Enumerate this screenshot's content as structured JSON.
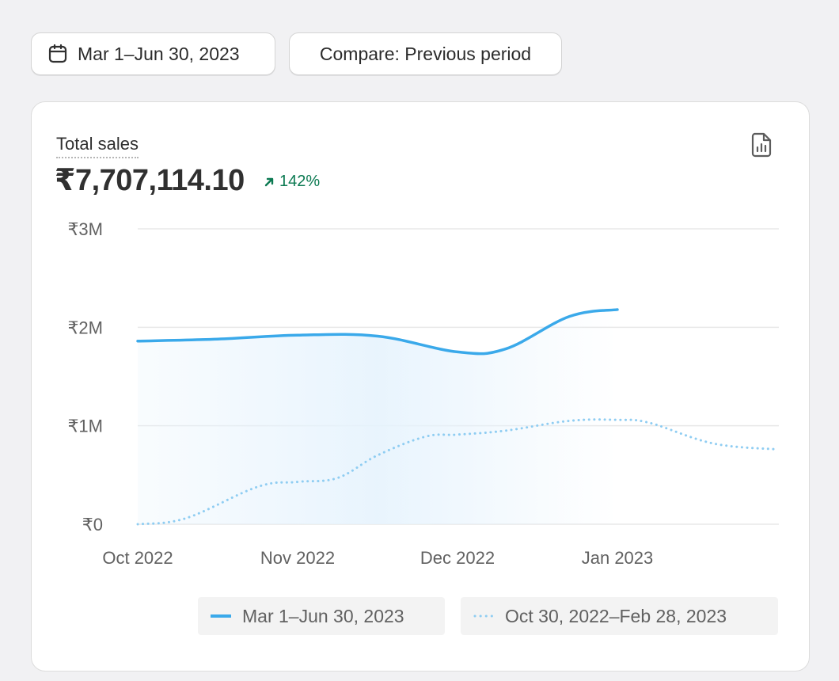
{
  "toolbar": {
    "date_range_label": "Mar 1–Jun 30, 2023",
    "compare_label": "Compare: Previous period",
    "date_icon": "calendar-icon"
  },
  "metric": {
    "label": "Total sales",
    "value": "₹7,707,114.10",
    "change": "142%",
    "change_direction": "up",
    "change_color": "#0c7a52",
    "export_icon": "report-file-icon"
  },
  "chart_data": {
    "type": "line",
    "title": "",
    "xlabel": "",
    "ylabel": "",
    "x_ticks": [
      "Oct 2022",
      "Nov 2022",
      "Dec 2022",
      "Jan 2023"
    ],
    "y_ticks": [
      "₹3M",
      "₹2M",
      "₹1M",
      "₹0"
    ],
    "y_tick_values": [
      3000000,
      2000000,
      1000000,
      0
    ],
    "ylim": [
      0,
      3000000
    ],
    "grid": true,
    "legend_position": "bottom",
    "series": [
      {
        "name": "Mar 1–Jun 30, 2023",
        "style": "solid",
        "color": "#3aa9ea",
        "area_fill": true,
        "x_index": [
          0,
          0.5,
          1,
          1.5,
          2,
          2.3,
          2.7,
          3
        ],
        "values": [
          1860000,
          1880000,
          1920000,
          1910000,
          1750000,
          1780000,
          2110000,
          2180000
        ]
      },
      {
        "name": "Oct 30, 2022–Feb 28, 2023",
        "style": "dotted",
        "color": "#8fcdf2",
        "area_fill": false,
        "x_index": [
          0,
          0.3,
          0.75,
          1,
          1.25,
          1.5,
          1.8,
          2,
          2.3,
          2.7,
          3,
          3.2,
          3.6,
          4
        ],
        "values": [
          0,
          60000,
          380000,
          430000,
          470000,
          700000,
          890000,
          910000,
          950000,
          1050000,
          1060000,
          1030000,
          820000,
          760000
        ]
      }
    ]
  }
}
